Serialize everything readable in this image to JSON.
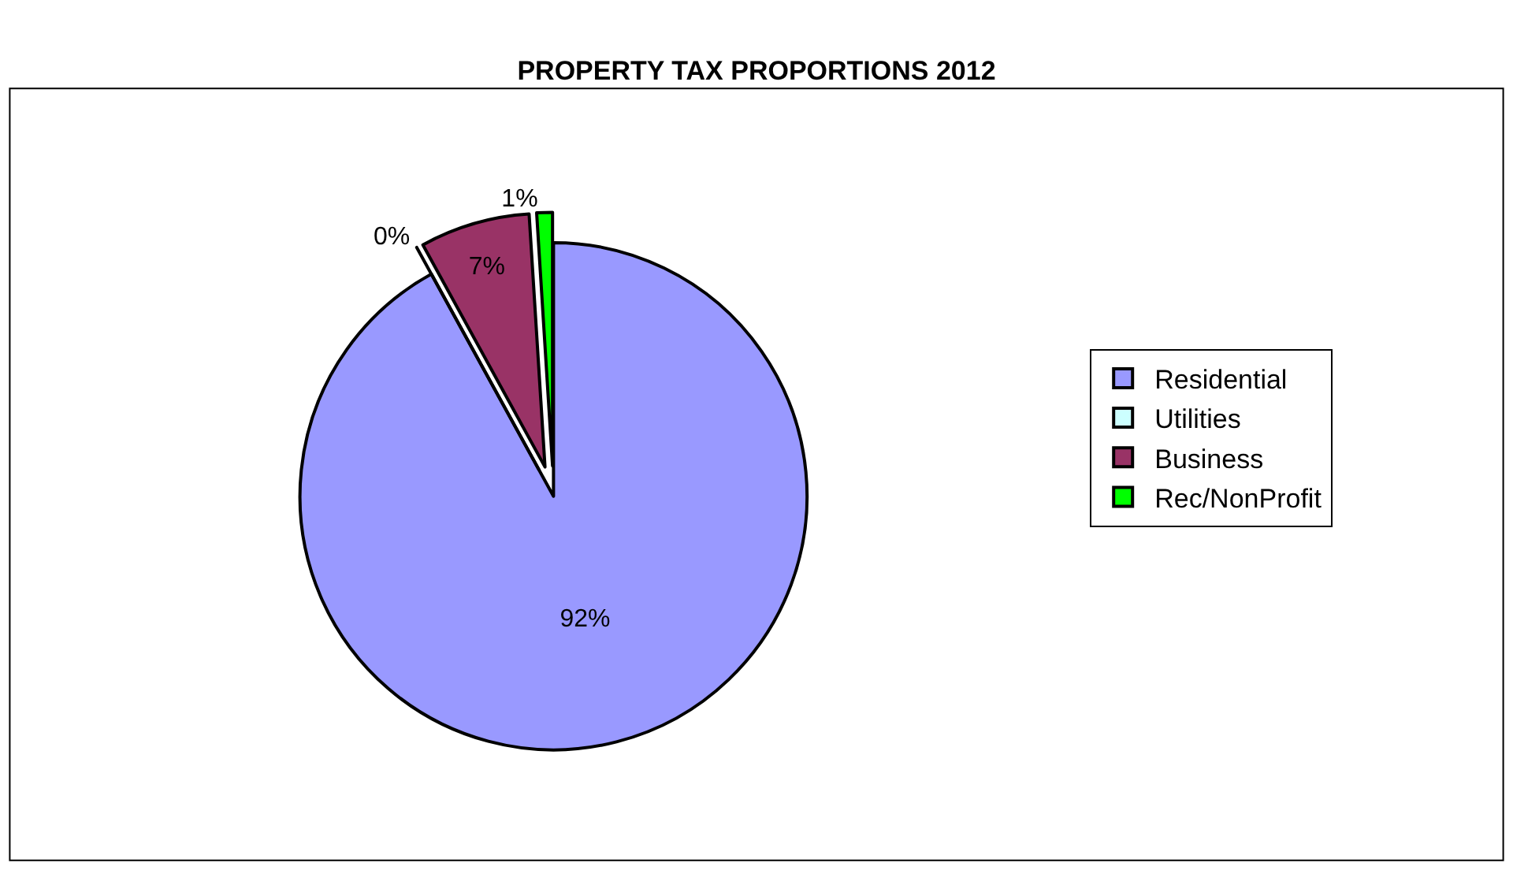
{
  "chart_data": {
    "type": "pie",
    "title": "PROPERTY TAX PROPORTIONS 2012",
    "categories": [
      "Residential",
      "Utilities",
      "Business",
      "Rec/NonProfit"
    ],
    "values": [
      92,
      0,
      7,
      1
    ],
    "colors": [
      "#9999ff",
      "#ccffff",
      "#993366",
      "#00ff00"
    ],
    "value_labels": [
      "92%",
      "0%",
      "7%",
      "1%"
    ],
    "legend": "right"
  }
}
